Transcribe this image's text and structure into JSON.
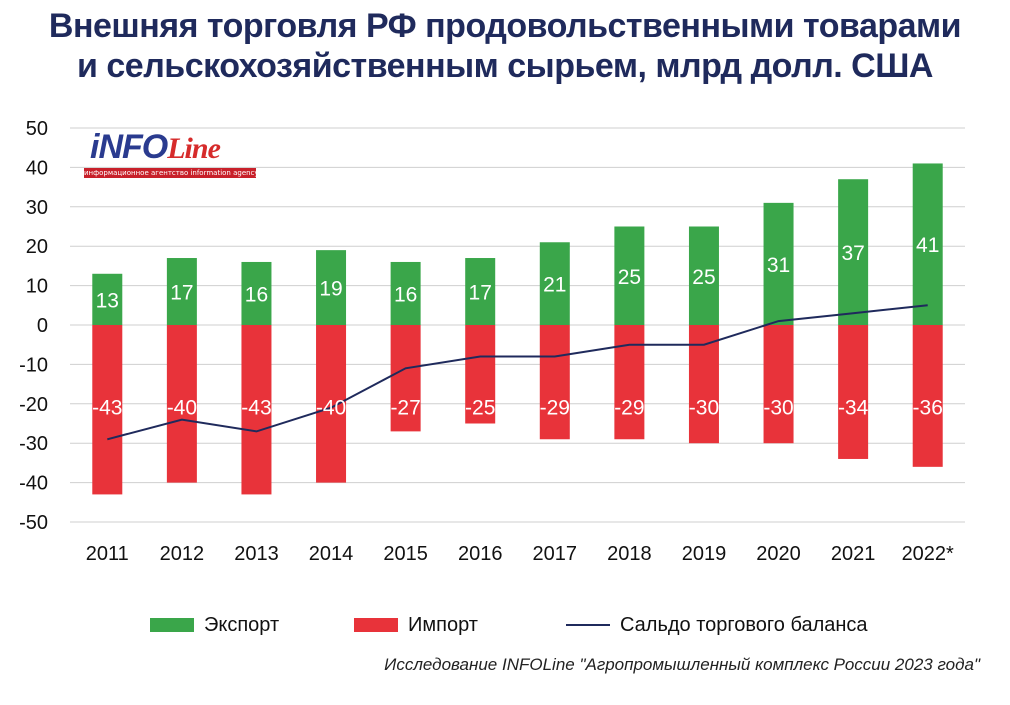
{
  "title": {
    "line1": "Внешняя торговля РФ продовольственными товарами",
    "line2": "и сельскохозяйственным сырьем, млрд долл. США"
  },
  "logo": {
    "main_info": "iNFO",
    "main_line": "Line",
    "strip": "информационное агентство   information agency"
  },
  "source": "Исследование INFOLine \"Агропромышленный комплекс России 2023 года\"",
  "colors": {
    "export": "#3aa64a",
    "import": "#e8333a",
    "balance": "#1f2a5c",
    "grid": "#cfcfcf"
  },
  "chart_data": {
    "type": "bar",
    "categories": [
      "2011",
      "2012",
      "2013",
      "2014",
      "2015",
      "2016",
      "2017",
      "2018",
      "2019",
      "2020",
      "2021",
      "2022*"
    ],
    "series": [
      {
        "name": "Экспорт",
        "type": "bar",
        "values": [
          13,
          17,
          16,
          19,
          16,
          17,
          21,
          25,
          25,
          31,
          37,
          41
        ],
        "labels": [
          "13",
          "17",
          "16",
          "19",
          "16",
          "17",
          "21",
          "25",
          "25",
          "31",
          "37",
          "41"
        ]
      },
      {
        "name": "Импорт",
        "type": "bar",
        "values": [
          -43,
          -40,
          -43,
          -40,
          -27,
          -25,
          -29,
          -29,
          -30,
          -30,
          -34,
          -36
        ],
        "labels": [
          "-43",
          "-40",
          "-43",
          "-40",
          "-27",
          "-25",
          "-29",
          "-29",
          "-30",
          "-30",
          "-34",
          "-36"
        ]
      },
      {
        "name": "Сальдо торгового баланса",
        "type": "line",
        "values": [
          -29,
          -24,
          -27,
          -21,
          -11,
          -8,
          -8,
          -5,
          -5,
          1,
          3,
          5
        ]
      }
    ],
    "ylim": [
      -50,
      50
    ],
    "yticks": [
      -50,
      -40,
      -30,
      -20,
      -10,
      0,
      10,
      20,
      30,
      40,
      50
    ],
    "ytick_labels": [
      "-50",
      "-40",
      "-30",
      "-20",
      "-10",
      "0",
      "10",
      "20",
      "30",
      "40",
      "50"
    ],
    "grid": true,
    "legend": "bottom"
  }
}
